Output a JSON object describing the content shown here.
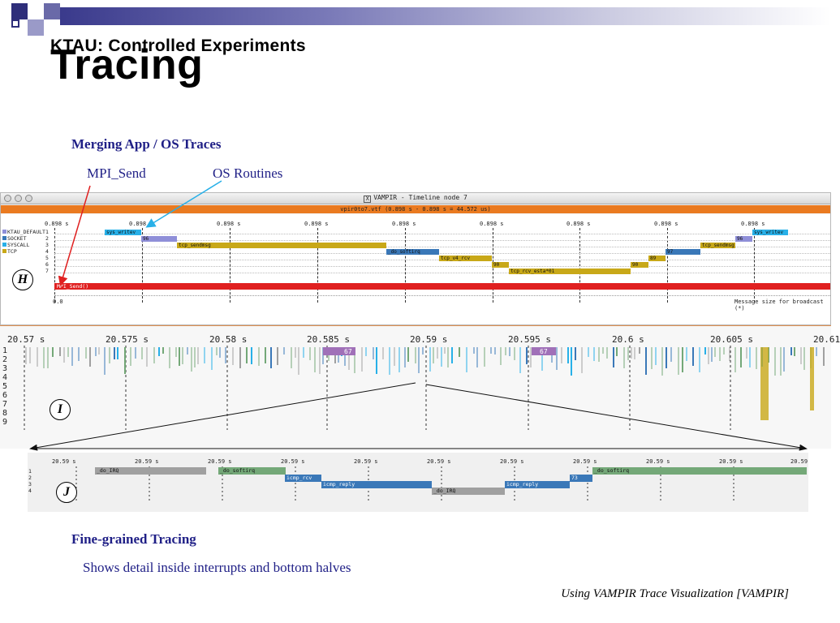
{
  "slide": {
    "subtitle": "KTAU: Controlled Experiments",
    "title": "Tracing",
    "heading_merge": "Merging App / OS Traces",
    "label_mpi_send": "MPI_Send",
    "label_os_routines": "OS Routines",
    "heading_fine": "Fine-grained Tracing",
    "description": "Shows detail inside interrupts and bottom halves",
    "credit": "Using VAMPIR Trace Visualization [VAMPIR]"
  },
  "colors": {
    "accent_text": "#1f1f86",
    "status_bar": "#ea7a20",
    "ktau_default": "#8f8fd8",
    "socket": "#3a78b8",
    "syscall": "#28b0e8",
    "tcp": "#c8a818",
    "mpi": "#e02020",
    "irq_gray": "#a0a0a0",
    "softirq_green": "#74a878",
    "purple": "#a070b8"
  },
  "window": {
    "title": "VAMPIR - Timeline node 7",
    "title_icon": "x-window-icon",
    "status": "vpir0to7.vtf (0.898 s - 0.898 s = 44.572 us)",
    "ticks": [
      "0.898 s",
      "0.898 s",
      "0.898 s",
      "0.898 s",
      "0.898 s",
      "0.898 s",
      "0.898 s",
      "0.898 s",
      "0.898 s"
    ],
    "legend": [
      {
        "label": "KTAU_DEFAULT",
        "color": "#8f8fd8"
      },
      {
        "label": "SOCKET",
        "color": "#3a78b8"
      },
      {
        "label": "SYSCALL",
        "color": "#28b0e8"
      },
      {
        "label": "TCP",
        "color": "#c8a818"
      }
    ],
    "rows": [
      "1",
      "2",
      "3",
      "4",
      "5",
      "6",
      "7"
    ],
    "bars": {
      "sys_writev_1": "sys_writev",
      "b96_1": "96",
      "tcp_sendmsg_1": "tcp_sendmsg",
      "do_softirq": "_do_softirq",
      "tcp_v4_rcv": "tcp_v4_rcv",
      "b90_1": "90",
      "tcp_rcv_esta": "tcp_rcv_esta*01",
      "b90_2": "90",
      "b89": "89",
      "b97": "97",
      "tcp_sendmsg_2": "tcp_sendmsg",
      "b96_2": "96",
      "sys_writev_2": "sys_writev"
    },
    "mpi_label": "MPI_Send()",
    "axis_zero": "0.0",
    "message_size": "Message size for broadcast (*)"
  },
  "timeline_i": {
    "ticks": [
      "20.57 s",
      "20.575 s",
      "20.58 s",
      "20.585 s",
      "20.59 s",
      "20.595 s",
      "20.6 s",
      "20.605 s",
      "20.61"
    ],
    "rows": [
      "1",
      "2",
      "3",
      "4",
      "5",
      "6",
      "7",
      "8",
      "9"
    ],
    "labels": [
      "67",
      "67"
    ]
  },
  "timeline_j": {
    "ticks": [
      "20.59 s",
      "20.59 s",
      "20.59 s",
      "20.59 s",
      "20.59 s",
      "20.59 s",
      "20.59 s",
      "20.59 s",
      "20.59 s",
      "20.59 s",
      "20.59"
    ],
    "rows": [
      "1",
      "2",
      "3",
      "4"
    ],
    "bars": {
      "do_irq_1": "_do_IRQ",
      "do_softirq_1": "_do_softirq",
      "icmp_rcv": "icmp_rcv",
      "icmp_reply_1": "icmp_reply",
      "do_irq_2": "_do_IRQ",
      "icmp_reply_2": "icmp_reply",
      "b73": "73",
      "do_softirq_2": "_do_softirq"
    }
  },
  "markers": {
    "h": "H",
    "i": "I",
    "j": "J"
  }
}
